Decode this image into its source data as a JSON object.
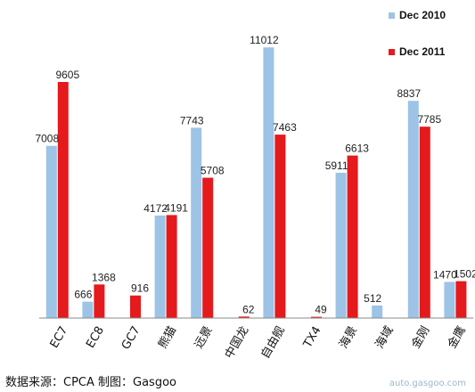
{
  "chart_data": {
    "type": "bar",
    "title": "",
    "xlabel": "",
    "ylabel": "",
    "ylim": [
      0,
      11600
    ],
    "grid": false,
    "legend": "top-right",
    "categories": [
      "EC7",
      "EC8",
      "GC7",
      "熊猫",
      "远景",
      "中国龙",
      "自由舰",
      "TX4",
      "海景",
      "海域",
      "金刚",
      "金鹰"
    ],
    "series": [
      {
        "name": "Dec 2010",
        "color": "#9DC3E6",
        "values": [
          7008,
          666,
          null,
          4172,
          7743,
          null,
          11012,
          null,
          5911,
          512,
          8837,
          1470
        ]
      },
      {
        "name": "Dec 2011",
        "color": "#E41A1C",
        "values": [
          9605,
          1368,
          916,
          4191,
          5708,
          62,
          7463,
          49,
          6613,
          null,
          7785,
          1502
        ]
      }
    ]
  },
  "source_text": "数据来源：CPCA  制图：Gasgoo",
  "watermark_text": "auto.gasgoo.com"
}
